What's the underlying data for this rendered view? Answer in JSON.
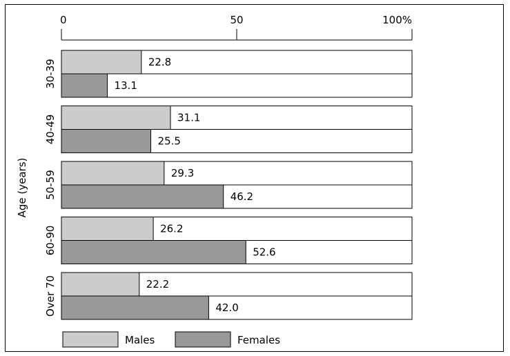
{
  "chart_data": {
    "type": "bar",
    "orientation": "horizontal",
    "title": "",
    "xlabel": "",
    "ylabel": "Age (years)",
    "xlim": [
      0,
      100
    ],
    "x_ticks": [
      "0",
      "50",
      "100%"
    ],
    "x_tick_values": [
      0,
      50,
      100
    ],
    "categories": [
      "30-39",
      "40-49",
      "50-59",
      "60-90",
      "Over 70"
    ],
    "series": [
      {
        "name": "Males",
        "color": "#cccccc",
        "values": [
          22.8,
          31.1,
          29.3,
          26.2,
          22.2
        ],
        "labels": [
          "22.8",
          "31.1",
          "29.3",
          "26.2",
          "22.2"
        ]
      },
      {
        "name": "Females",
        "color": "#999999",
        "values": [
          13.1,
          25.5,
          46.2,
          52.6,
          42.0
        ],
        "labels": [
          "13.1",
          "25.5",
          "46.2",
          "52.6",
          "42.0"
        ]
      }
    ],
    "legend_position": "bottom-left",
    "grid": false
  }
}
